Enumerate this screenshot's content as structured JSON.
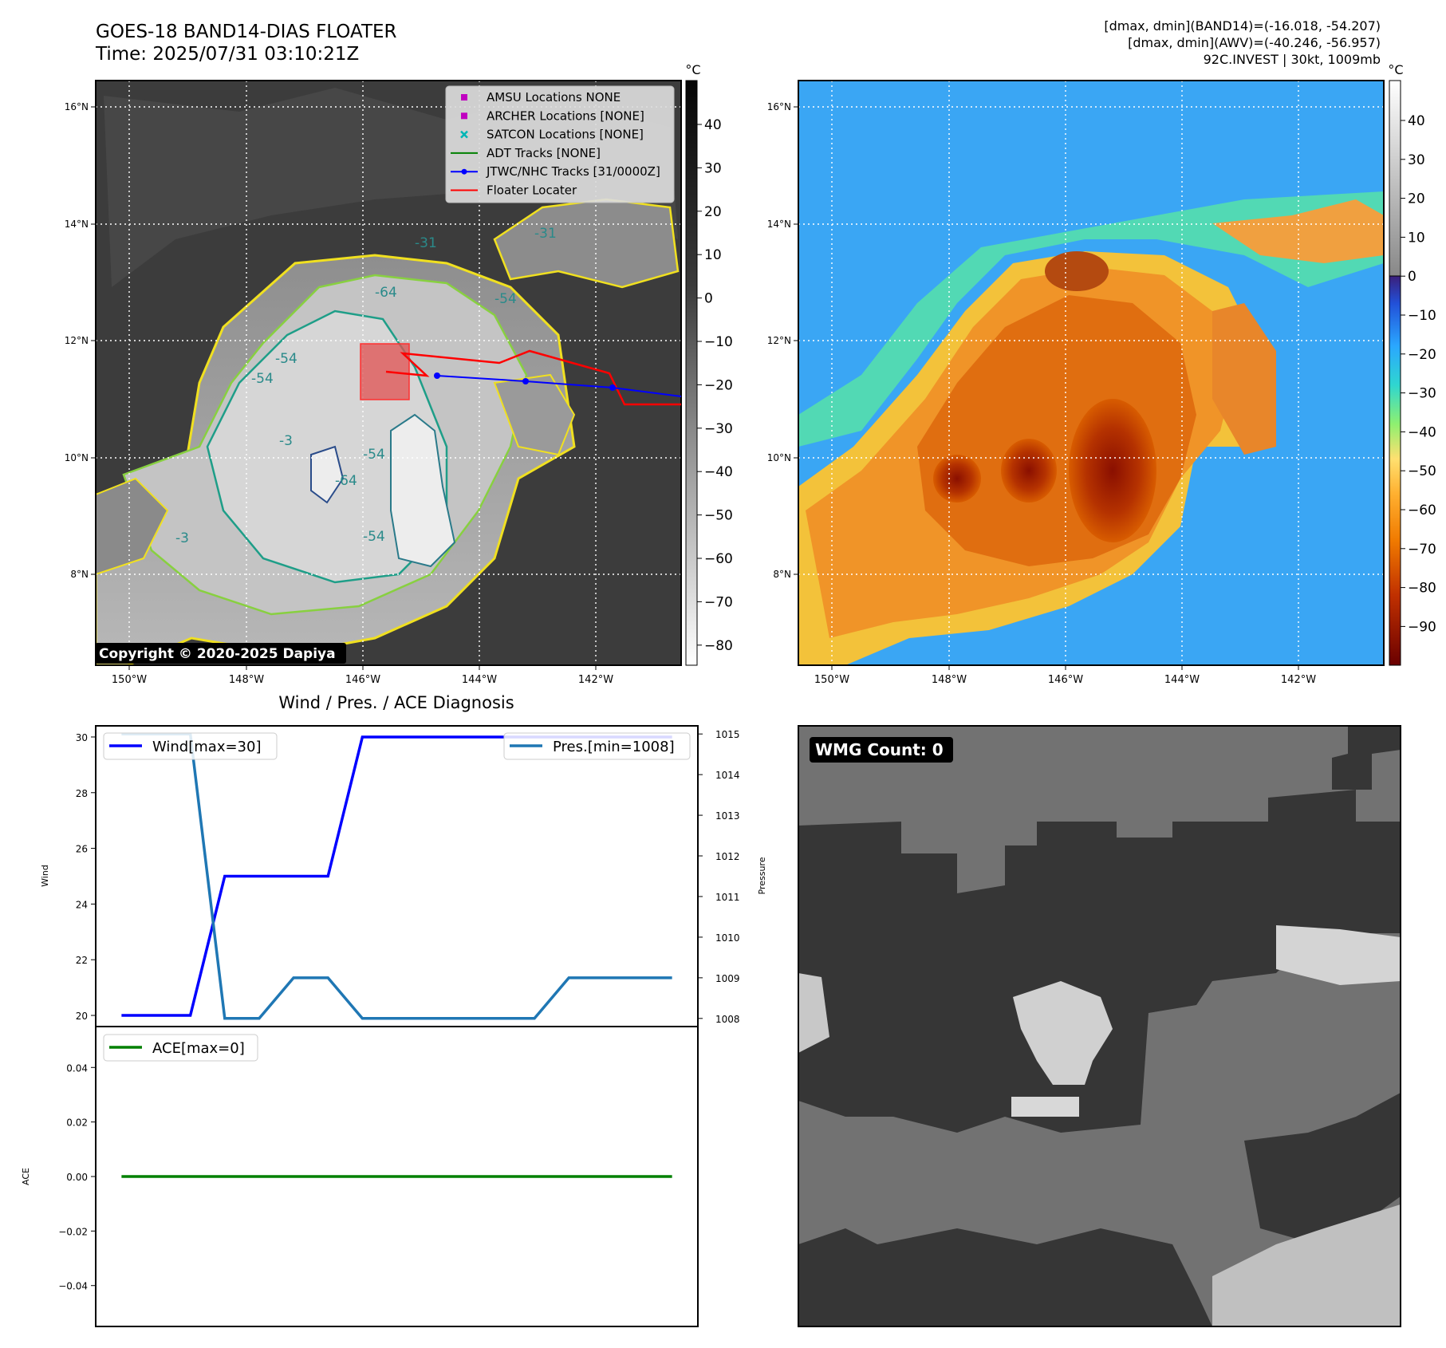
{
  "header": {
    "title_line1": "GOES-18 BAND14-DIAS FLOATER",
    "title_line2": "Time: 2025/07/31 03:10:21Z",
    "info_line1": "[dmax, dmin](BAND14)=(-16.018, -54.207)",
    "info_line2": "[dmax, dmin](AWV)=(-40.246, -56.957)",
    "info_line3": "92C.INVEST | 30kt, 1009mb"
  },
  "map_axes": {
    "lon_ticks": [
      "150°W",
      "148°W",
      "146°W",
      "144°W",
      "142°W"
    ],
    "lat_ticks": [
      "16°N",
      "14°N",
      "12°N",
      "10°N",
      "8°N"
    ]
  },
  "ir_panel": {
    "copyright": "Copyright © 2020-2025 Dapiya",
    "colorbar_unit": "°C",
    "colorbar_ticks": [
      "40",
      "30",
      "20",
      "10",
      "0",
      "−10",
      "−20",
      "−30",
      "−40",
      "−50",
      "−60",
      "−70",
      "−80"
    ],
    "contour_labels": [
      "-64",
      "-54",
      "-54",
      "-54",
      "-54",
      "-64",
      "-3",
      "-31",
      "-31",
      "-3",
      "-54"
    ],
    "legend": [
      {
        "label": "AMSU Locations NONE",
        "marker": "square",
        "color": "#c000c0"
      },
      {
        "label": "ARCHER Locations [NONE]",
        "marker": "square",
        "color": "#c000c0"
      },
      {
        "label": "SATCON Locations [NONE]",
        "marker": "x",
        "color": "#00b5b5"
      },
      {
        "label": "ADT Tracks [NONE]",
        "marker": "line",
        "color": "#008000"
      },
      {
        "label": "JTWC/NHC Tracks [31/0000Z]",
        "marker": "line-dot",
        "color": "#0000ff"
      },
      {
        "label": "Floater Locater",
        "marker": "line",
        "color": "#ff0000"
      }
    ]
  },
  "awv_panel": {
    "colorbar_unit": "°C",
    "colorbar_ticks": [
      "40",
      "30",
      "20",
      "10",
      "0",
      "−10",
      "−20",
      "−30",
      "−40",
      "−50",
      "−60",
      "−70",
      "−80",
      "−90"
    ]
  },
  "diag_panel": {
    "title": "Wind / Pres. / ACE Diagnosis",
    "wind_ylabel": "Wind",
    "pres_ylabel": "Pressure",
    "ace_ylabel": "ACE",
    "wind_ticks": [
      "30",
      "28",
      "26",
      "24",
      "22",
      "20"
    ],
    "pres_ticks": [
      "1015",
      "1014",
      "1013",
      "1012",
      "1011",
      "1010",
      "1009",
      "1008"
    ],
    "ace_ticks": [
      "0.04",
      "0.02",
      "0.00",
      "−0.02",
      "−0.04"
    ],
    "legend_wind": "Wind[max=30]",
    "legend_pres": "Pres.[min=1008]",
    "legend_ace": "ACE[max=0]"
  },
  "wmg_panel": {
    "badge": "WMG Count: 0"
  },
  "chart_data": [
    {
      "type": "line",
      "title": "Wind / Pres. / ACE Diagnosis",
      "xlabel": "",
      "ylabel": "Wind",
      "ylim": [
        19.6,
        30.4
      ],
      "series": [
        {
          "name": "Wind[max=30]",
          "color": "#0000ff",
          "x": [
            0,
            2,
            3,
            4,
            5,
            6,
            7,
            8,
            9,
            10,
            11,
            12,
            13,
            14,
            15,
            16
          ],
          "values": [
            20,
            20,
            25,
            25,
            25,
            25,
            30,
            30,
            30,
            30,
            30,
            30,
            30,
            30,
            30,
            30
          ]
        },
        {
          "name": "Pres.[min=1008]",
          "color": "#1f77b4",
          "axis": "right",
          "ylim": [
            1007.8,
            1015.2
          ],
          "x": [
            0,
            2,
            3,
            4,
            5,
            6,
            7,
            8,
            9,
            10,
            11,
            12,
            13,
            14,
            15,
            16
          ],
          "values": [
            1015,
            1015,
            1008,
            1008,
            1009,
            1009,
            1008,
            1008,
            1008,
            1008,
            1008,
            1008,
            1009,
            1009,
            1009,
            1009
          ]
        }
      ]
    },
    {
      "type": "line",
      "ylabel": "ACE",
      "ylim": [
        -0.055,
        0.055
      ],
      "series": [
        {
          "name": "ACE[max=0]",
          "color": "#008000",
          "x": [
            0,
            16
          ],
          "values": [
            0,
            0
          ]
        }
      ]
    }
  ]
}
